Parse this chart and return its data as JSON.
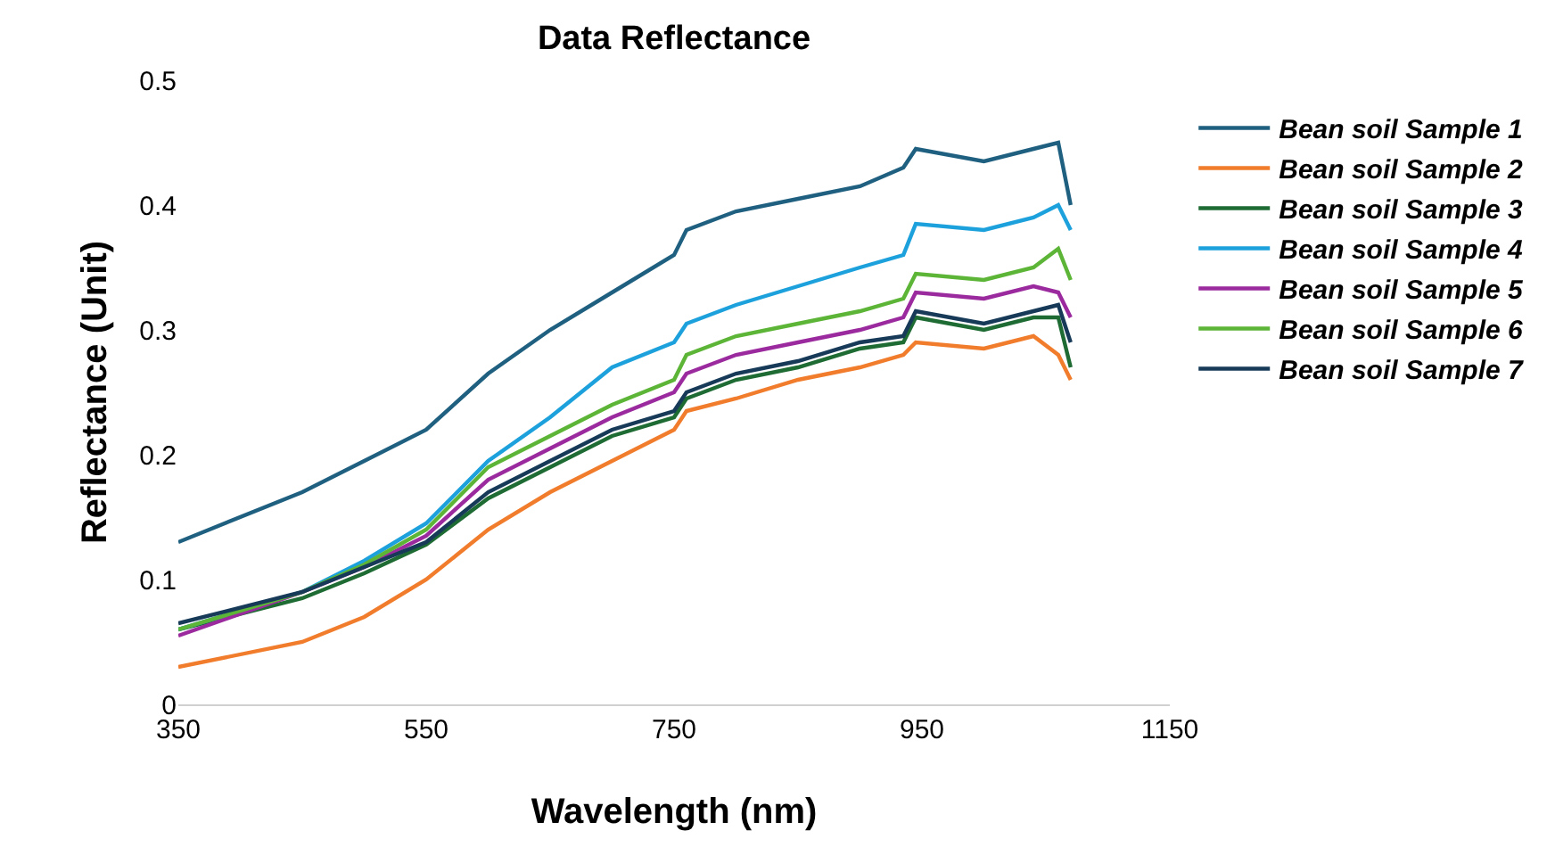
{
  "chart_data": {
    "type": "line",
    "title": "Data Reflectance",
    "xlabel": "Wavelength (nm)",
    "ylabel": "Reflectance (Unit)",
    "x": [
      350,
      450,
      500,
      550,
      600,
      650,
      700,
      750,
      760,
      800,
      850,
      900,
      935,
      945,
      1000,
      1040,
      1060,
      1070
    ],
    "series": [
      {
        "name": "Bean soil Sample 1",
        "color": "#1f6080",
        "values": [
          0.13,
          0.17,
          0.195,
          0.22,
          0.265,
          0.3,
          0.33,
          0.36,
          0.38,
          0.395,
          0.405,
          0.415,
          0.43,
          0.445,
          0.435,
          0.445,
          0.45,
          0.4
        ]
      },
      {
        "name": "Bean soil Sample 2",
        "color": "#f07c2c",
        "values": [
          0.03,
          0.05,
          0.07,
          0.1,
          0.14,
          0.17,
          0.195,
          0.22,
          0.235,
          0.245,
          0.26,
          0.27,
          0.28,
          0.29,
          0.285,
          0.295,
          0.28,
          0.26
        ]
      },
      {
        "name": "Bean soil Sample 3",
        "color": "#1e6b34",
        "values": [
          0.06,
          0.085,
          0.105,
          0.128,
          0.165,
          0.19,
          0.215,
          0.23,
          0.245,
          0.26,
          0.27,
          0.285,
          0.29,
          0.31,
          0.3,
          0.31,
          0.31,
          0.27
        ]
      },
      {
        "name": "Bean soil Sample 4",
        "color": "#1da1dc",
        "values": [
          0.06,
          0.09,
          0.115,
          0.145,
          0.195,
          0.23,
          0.27,
          0.29,
          0.305,
          0.32,
          0.335,
          0.35,
          0.36,
          0.385,
          0.38,
          0.39,
          0.4,
          0.38
        ]
      },
      {
        "name": "Bean soil Sample 5",
        "color": "#9b2a9e",
        "values": [
          0.055,
          0.09,
          0.11,
          0.135,
          0.18,
          0.205,
          0.23,
          0.25,
          0.265,
          0.28,
          0.29,
          0.3,
          0.31,
          0.33,
          0.325,
          0.335,
          0.33,
          0.31
        ]
      },
      {
        "name": "Bean soil Sample 6",
        "color": "#5cb536",
        "values": [
          0.06,
          0.09,
          0.112,
          0.14,
          0.19,
          0.215,
          0.24,
          0.26,
          0.28,
          0.295,
          0.305,
          0.315,
          0.325,
          0.345,
          0.34,
          0.35,
          0.365,
          0.34
        ]
      },
      {
        "name": "Bean soil Sample 7",
        "color": "#163a58",
        "values": [
          0.065,
          0.09,
          0.11,
          0.13,
          0.17,
          0.195,
          0.22,
          0.235,
          0.25,
          0.265,
          0.275,
          0.29,
          0.295,
          0.315,
          0.305,
          0.315,
          0.32,
          0.29
        ]
      }
    ],
    "xlim": [
      350,
      1150
    ],
    "xticks": [
      350,
      550,
      750,
      950,
      1150
    ],
    "ylim": [
      0,
      0.5
    ],
    "yticks": [
      0,
      0.1,
      0.2,
      0.3,
      0.4,
      0.5
    ],
    "legend": "right",
    "marker": "none",
    "line_style": "solid"
  }
}
